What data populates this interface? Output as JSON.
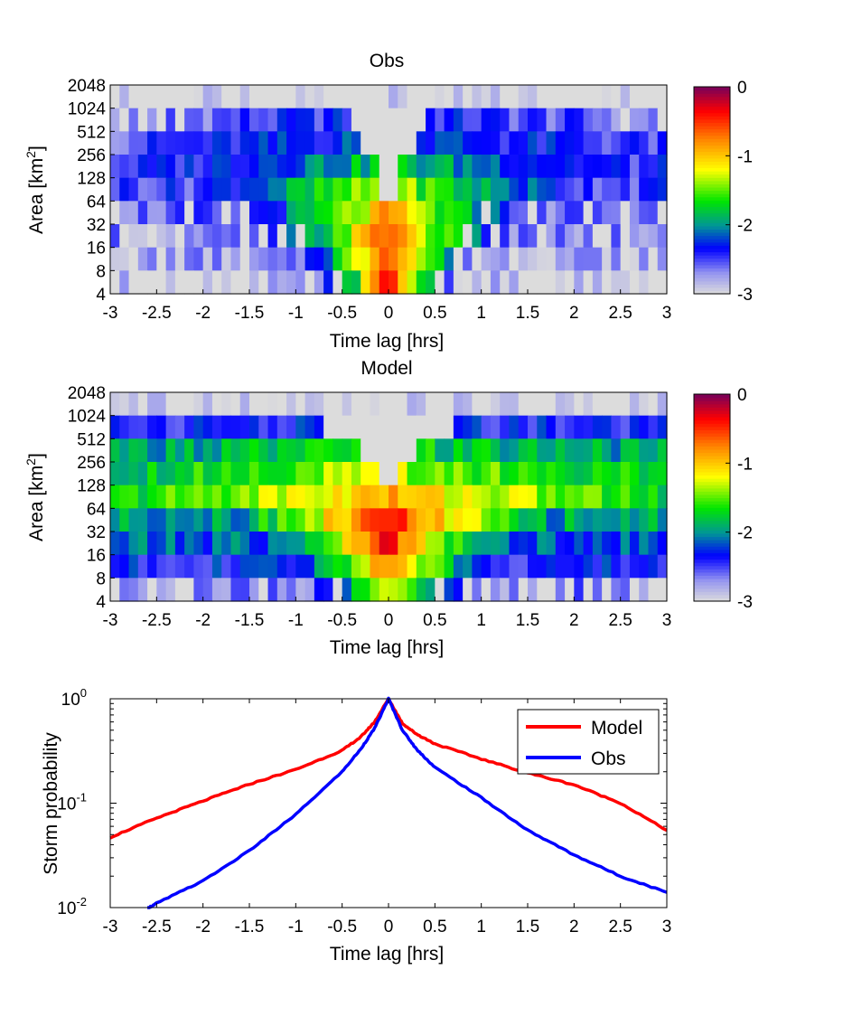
{
  "chart_data": [
    {
      "type": "heatmap",
      "title": "Obs",
      "xlabel": "Time lag [hrs]",
      "ylabel": "Area [km",
      "ylabel_sup": "2",
      "ylabel_suffix": "]",
      "xlim": [
        -3,
        3
      ],
      "x_ticks": [
        "-3",
        "-2.5",
        "-2",
        "-1.5",
        "-1",
        "-0.5",
        "0",
        "0.5",
        "1",
        "1.5",
        "2",
        "2.5",
        "3"
      ],
      "y_ticks": [
        "4",
        "8",
        "16",
        "32",
        "64",
        "128",
        "256",
        "512",
        "1024",
        "2048"
      ],
      "y_range_log2": [
        2,
        11
      ],
      "colorbar": {
        "ticks": [
          "0",
          "-1",
          "-2",
          "-3"
        ],
        "range": [
          -3,
          0
        ]
      },
      "rows": [
        {
          "area": "2048",
          "peak": -3.0,
          "width": 0.2,
          "floor": -3.0,
          "gap": 0
        },
        {
          "area": "1024",
          "peak": -2.3,
          "width": 2.2,
          "floor": -2.7,
          "gap": 0.4
        },
        {
          "area": "512",
          "peak": -2.15,
          "width": 2.0,
          "floor": -2.55,
          "gap": 0.3
        },
        {
          "area": "256",
          "peak": -1.75,
          "width": 1.6,
          "floor": -2.45,
          "gap": 0.12
        },
        {
          "area": "128",
          "peak": -1.25,
          "width": 1.3,
          "floor": -2.45,
          "gap": 0.06
        },
        {
          "area": "64",
          "peak": -0.85,
          "width": 1.0,
          "floor": -2.6,
          "gap": 0
        },
        {
          "area": "32",
          "peak": -0.45,
          "width": 0.85,
          "floor": -2.7,
          "gap": 0
        },
        {
          "area": "16",
          "peak": -0.3,
          "width": 0.65,
          "floor": -2.75,
          "gap": 0
        },
        {
          "area": "8",
          "peak": -0.25,
          "width": 0.5,
          "floor": -2.9,
          "gap": 0
        }
      ]
    },
    {
      "type": "heatmap",
      "title": "Model",
      "xlabel": "Time lag [hrs]",
      "ylabel": "Area [km",
      "ylabel_sup": "2",
      "ylabel_suffix": "]",
      "xlim": [
        -3,
        3
      ],
      "x_ticks": [
        "-3",
        "-2.5",
        "-2",
        "-1.5",
        "-1",
        "-0.5",
        "0",
        "0.5",
        "1",
        "1.5",
        "2",
        "2.5",
        "3"
      ],
      "y_ticks": [
        "4",
        "8",
        "16",
        "32",
        "64",
        "128",
        "256",
        "512",
        "1024",
        "2048"
      ],
      "y_range_log2": [
        2,
        11
      ],
      "colorbar": {
        "ticks": [
          "0",
          "-1",
          "-2",
          "-3"
        ],
        "range": [
          -3,
          0
        ]
      },
      "rows": [
        {
          "area": "2048",
          "peak": -3.0,
          "width": 0.2,
          "floor": -3.0,
          "gap": 0
        },
        {
          "area": "1024",
          "peak": -2.3,
          "width": 2.6,
          "floor": -2.45,
          "gap": 0.7
        },
        {
          "area": "512",
          "peak": -1.7,
          "width": 2.8,
          "floor": -2.1,
          "gap": 0.3
        },
        {
          "area": "256",
          "peak": -1.3,
          "width": 2.6,
          "floor": -1.95,
          "gap": 0.12
        },
        {
          "area": "128",
          "peak": -0.9,
          "width": 1.9,
          "floor": -1.75,
          "gap": 0.04
        },
        {
          "area": "64",
          "peak": -0.35,
          "width": 1.0,
          "floor": -1.95,
          "gap": 0
        },
        {
          "area": "32",
          "peak": -0.3,
          "width": 0.7,
          "floor": -2.15,
          "gap": 0
        },
        {
          "area": "16",
          "peak": -0.55,
          "width": 0.6,
          "floor": -2.35,
          "gap": 0
        },
        {
          "area": "8",
          "peak": -0.9,
          "width": 0.5,
          "floor": -2.65,
          "gap": 0
        }
      ]
    },
    {
      "type": "line",
      "xlabel": "Time lag [hrs]",
      "ylabel": "Storm probability",
      "xlim": [
        -3,
        3
      ],
      "ylim": [
        0.01,
        1
      ],
      "y_scale": "log",
      "x_ticks": [
        "-3",
        "-2.5",
        "-2",
        "-1.5",
        "-1",
        "-0.5",
        "0",
        "0.5",
        "1",
        "1.5",
        "2",
        "2.5",
        "3"
      ],
      "y_ticks": [
        {
          "base": "10",
          "exp": "0",
          "value": 1
        },
        {
          "base": "10",
          "exp": "-1",
          "value": 0.1
        },
        {
          "base": "10",
          "exp": "-2",
          "value": 0.01
        }
      ],
      "legend": "top-right",
      "series": [
        {
          "name": "Model",
          "color": "#ff0000",
          "x": [
            -3,
            -2.5,
            -2,
            -1.5,
            -1,
            -0.5,
            -0.3,
            -0.15,
            0,
            0.15,
            0.3,
            0.5,
            1,
            1.5,
            2,
            2.5,
            3
          ],
          "y": [
            0.047,
            0.072,
            0.105,
            0.152,
            0.21,
            0.32,
            0.43,
            0.6,
            1.0,
            0.58,
            0.46,
            0.37,
            0.265,
            0.195,
            0.15,
            0.1,
            0.055
          ]
        },
        {
          "name": "Obs",
          "color": "#0000ff",
          "x": [
            -2.6,
            -2.5,
            -2,
            -1.5,
            -1,
            -0.5,
            -0.3,
            -0.15,
            0,
            0.15,
            0.3,
            0.5,
            1,
            1.5,
            2,
            2.5,
            3
          ],
          "y": [
            0.0098,
            0.011,
            0.018,
            0.035,
            0.078,
            0.2,
            0.33,
            0.52,
            1.0,
            0.5,
            0.33,
            0.22,
            0.113,
            0.055,
            0.032,
            0.02,
            0.014
          ]
        }
      ]
    }
  ]
}
